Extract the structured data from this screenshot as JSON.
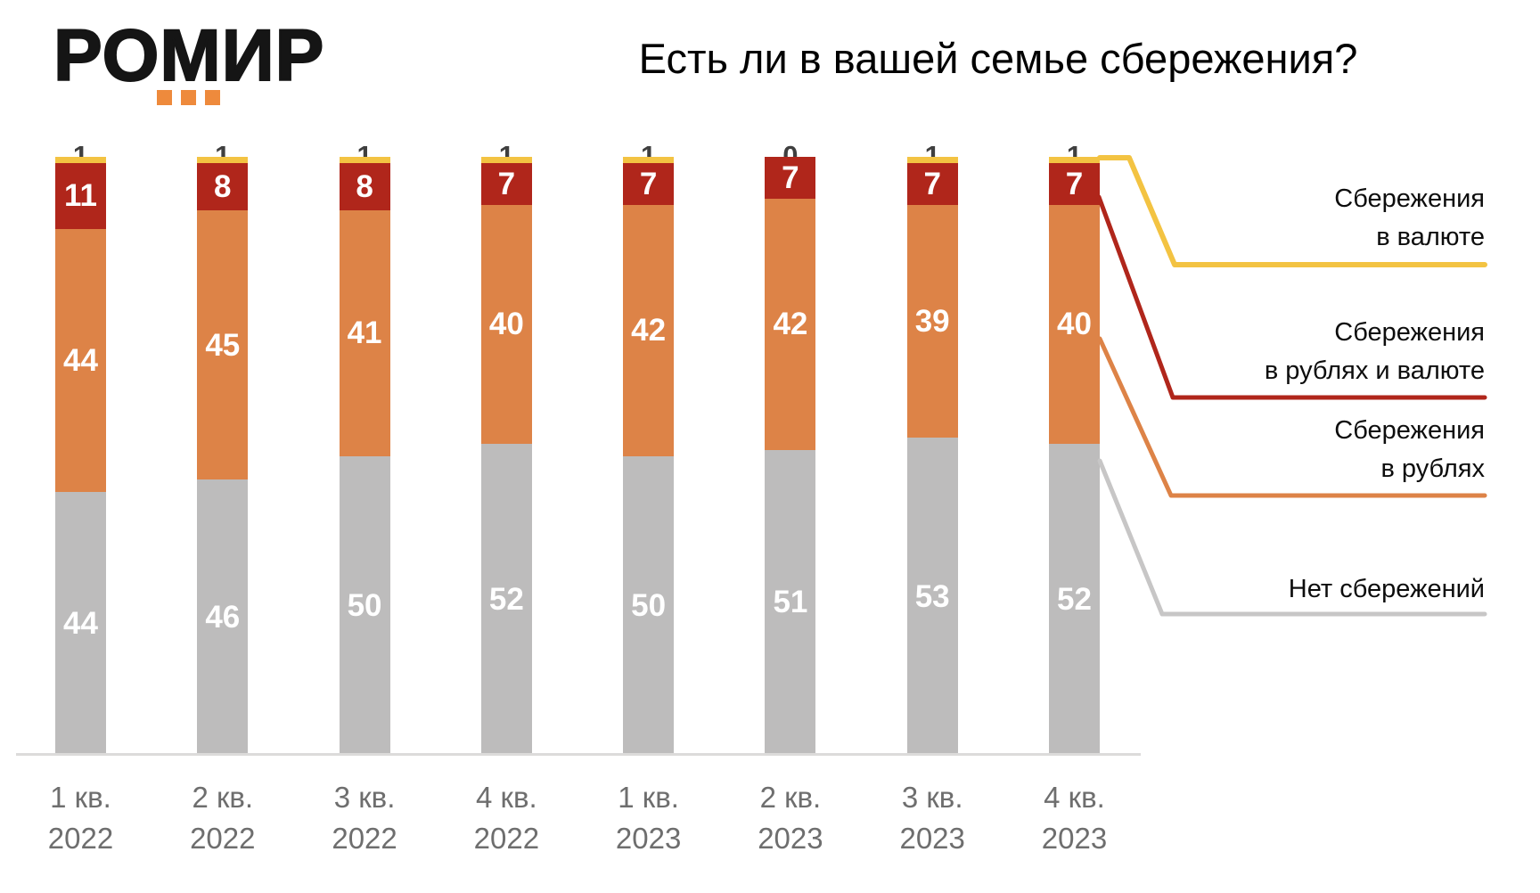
{
  "logo": {
    "text": "РОМИР"
  },
  "title": "Есть ли в вашей семье сбережения?",
  "colors": {
    "yellow": "#f3c342",
    "red": "#b0261b",
    "orange": "#dd8347",
    "gray": "#bdbcbc",
    "gray_line": "#c7c6c6",
    "logo_orange": "#ee8a3c",
    "axis": "#dcdbda",
    "dark_value_label": "#3f3f3f",
    "x_label": "#6e6e6e"
  },
  "chart_data": {
    "type": "bar",
    "stacked": true,
    "title": "Есть ли в вашей семье сбережения?",
    "xlabel": "",
    "ylabel": "",
    "ylim": [
      0,
      100
    ],
    "grid": false,
    "legend_position": "right",
    "value_labels": true,
    "categories": [
      {
        "quarter": "1 кв.",
        "year": "2022"
      },
      {
        "quarter": "2 кв.",
        "year": "2022"
      },
      {
        "quarter": "3 кв.",
        "year": "2022"
      },
      {
        "quarter": "4 кв.",
        "year": "2022"
      },
      {
        "quarter": "1 кв.",
        "year": "2023"
      },
      {
        "quarter": "2 кв.",
        "year": "2023"
      },
      {
        "quarter": "3 кв.",
        "year": "2023"
      },
      {
        "quarter": "4 кв.",
        "year": "2023"
      }
    ],
    "series": [
      {
        "name": "Нет сбережений",
        "color_key": "gray",
        "label_style": "white-inside",
        "values": [
          44,
          46,
          50,
          52,
          50,
          51,
          53,
          52
        ]
      },
      {
        "name": "Сбережения в рублях",
        "color_key": "orange",
        "label_style": "white-inside",
        "values": [
          44,
          45,
          41,
          40,
          42,
          42,
          39,
          40
        ]
      },
      {
        "name": "Сбережения в рублях и валюте",
        "color_key": "red",
        "label_style": "white-inside",
        "values": [
          11,
          8,
          8,
          7,
          7,
          7,
          7,
          7
        ]
      },
      {
        "name": "Сбережения в валюте",
        "color_key": "yellow",
        "label_style": "dark-above",
        "values": [
          1,
          1,
          1,
          1,
          1,
          0,
          1,
          1
        ]
      }
    ]
  },
  "legend": {
    "items": [
      {
        "lines": [
          "Сбережения",
          "в валюте"
        ],
        "color_key": "yellow"
      },
      {
        "lines": [
          "Сбережения",
          "в рублях и валюте"
        ],
        "color_key": "red"
      },
      {
        "lines": [
          "Сбережения",
          "в рублях"
        ],
        "color_key": "orange"
      },
      {
        "lines": [
          "Нет сбережений"
        ],
        "color_key": "gray_line"
      }
    ]
  }
}
